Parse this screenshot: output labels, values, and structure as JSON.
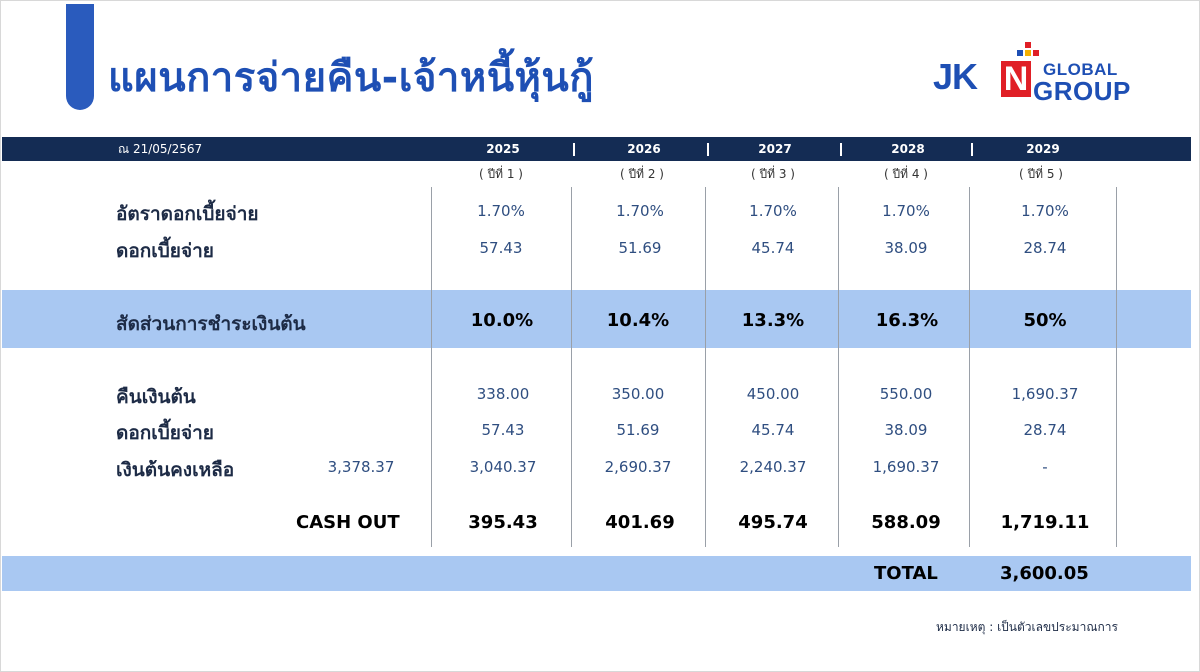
{
  "title": "แผนการจ่ายคืน-เจ้าหนี้หุ้นกู้",
  "logo": {
    "jk": "JK",
    "n": "N",
    "global": "GLOBAL",
    "group": "GROUP"
  },
  "as_of": "ณ 21/05/2567",
  "years": [
    "2025",
    "2026",
    "2027",
    "2028",
    "2029"
  ],
  "year_numbers": [
    "( ปีที่ 1 )",
    "( ปีที่ 2 )",
    "( ปีที่ 3 )",
    "( ปีที่ 4 )",
    "( ปีที่ 5 )"
  ],
  "rows": {
    "interest_rate": {
      "label": "อัตราดอกเบี้ยจ่าย",
      "values": [
        "1.70%",
        "1.70%",
        "1.70%",
        "1.70%",
        "1.70%"
      ]
    },
    "interest": {
      "label": "ดอกเบี้ยจ่าย",
      "values": [
        "57.43",
        "51.69",
        "45.74",
        "38.09",
        "28.74"
      ]
    },
    "repayment_ratio": {
      "label": "สัดส่วนการชำระเงินต้น",
      "values": [
        "10.0%",
        "10.4%",
        "13.3%",
        "16.3%",
        "50%"
      ]
    },
    "principal_repaid": {
      "label": "คืนเงินต้น",
      "values": [
        "338.00",
        "350.00",
        "450.00",
        "550.00",
        "1,690.37"
      ]
    },
    "interest_2": {
      "label": "ดอกเบี้ยจ่าย",
      "values": [
        "57.43",
        "51.69",
        "45.74",
        "38.09",
        "28.74"
      ]
    },
    "remaining_principal": {
      "label": "เงินต้นคงเหลือ",
      "initial": "3,378.37",
      "values": [
        "3,040.37",
        "2,690.37",
        "2,240.37",
        "1,690.37",
        "-"
      ]
    },
    "cash_out": {
      "label": "CASH OUT",
      "values": [
        "395.43",
        "401.69",
        "495.74",
        "588.09",
        "1,719.11"
      ]
    }
  },
  "total": {
    "label": "TOTAL",
    "value": "3,600.05"
  },
  "note": "หมายเหตุ : เป็นตัวเลขประมาณการ",
  "colors": {
    "title": "#1e4fb4",
    "header_band": "#142c54",
    "highlight_band": "#a9c8f2",
    "logo_n": "#e01f26"
  }
}
